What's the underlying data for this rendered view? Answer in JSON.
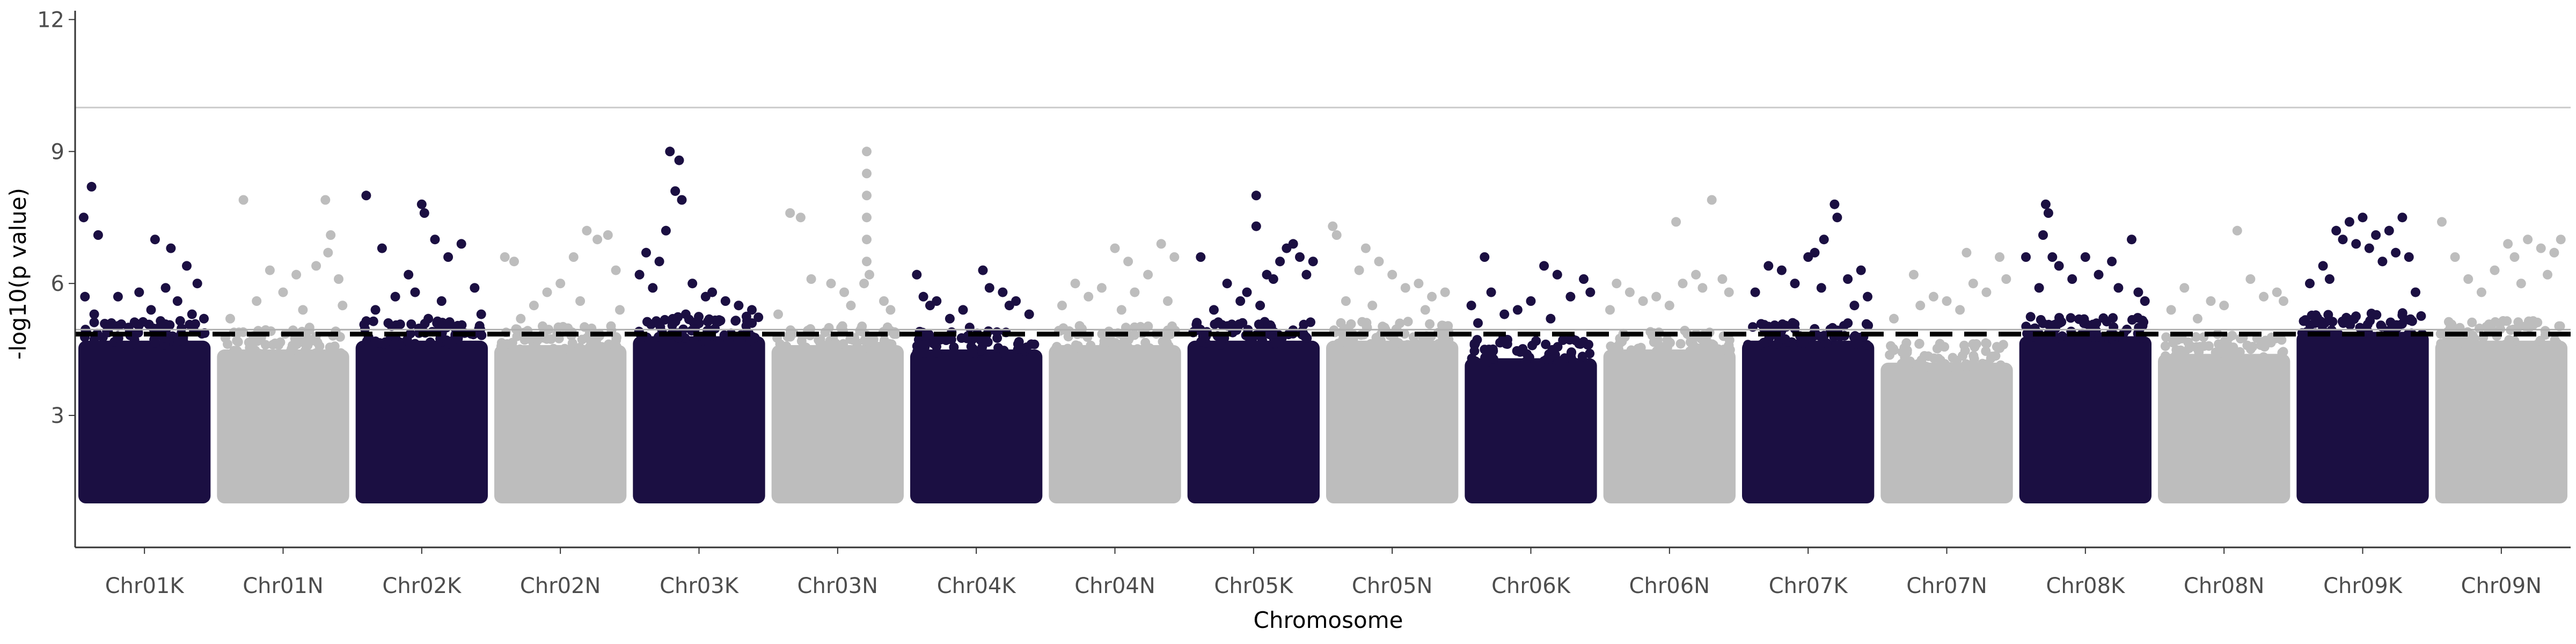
{
  "chart_data": {
    "type": "scatter",
    "subtype": "manhattan",
    "title": "",
    "xlabel": "Chromosome",
    "ylabel": "-log10(p value)",
    "ylim": [
      0,
      12.2
    ],
    "yticks": [
      3,
      6,
      9,
      12
    ],
    "grid": false,
    "legend": "none",
    "colors": {
      "dark": "#1b0f42",
      "light": "#bdbdbd"
    },
    "reference_lines": [
      {
        "y": 10.0,
        "style": "solid",
        "color": "#cccccc"
      },
      {
        "y": 4.95,
        "style": "solid",
        "color": "#b0b0b0"
      },
      {
        "y": 4.85,
        "style": "dashed",
        "color": "#000000"
      }
    ],
    "chromosomes": [
      {
        "name": "Chr01K",
        "color": "dark",
        "bulk_top": 4.7,
        "hits": [
          [
            0.1,
            8.2
          ],
          [
            0.04,
            7.5
          ],
          [
            0.15,
            7.1
          ],
          [
            0.58,
            7.0
          ],
          [
            0.7,
            6.8
          ],
          [
            0.82,
            6.4
          ],
          [
            0.9,
            6.0
          ],
          [
            0.3,
            5.7
          ],
          [
            0.46,
            5.8
          ],
          [
            0.66,
            5.9
          ],
          [
            0.05,
            5.7
          ],
          [
            0.75,
            5.6
          ],
          [
            0.12,
            5.3
          ],
          [
            0.25,
            5.1
          ],
          [
            0.55,
            5.4
          ],
          [
            0.86,
            5.3
          ],
          [
            0.95,
            5.2
          ],
          [
            0.38,
            5.0
          ]
        ]
      },
      {
        "name": "Chr01N",
        "color": "light",
        "bulk_top": 4.5,
        "hits": [
          [
            0.2,
            7.9
          ],
          [
            0.82,
            7.9
          ],
          [
            0.86,
            7.1
          ],
          [
            0.4,
            6.3
          ],
          [
            0.6,
            6.2
          ],
          [
            0.75,
            6.4
          ],
          [
            0.92,
            6.1
          ],
          [
            0.3,
            5.6
          ],
          [
            0.5,
            5.8
          ],
          [
            0.1,
            5.2
          ],
          [
            0.65,
            5.4
          ],
          [
            0.95,
            5.5
          ],
          [
            0.7,
            5.0
          ],
          [
            0.84,
            6.7
          ]
        ]
      },
      {
        "name": "Chr02K",
        "color": "dark",
        "bulk_top": 4.7,
        "hits": [
          [
            0.08,
            8.0
          ],
          [
            0.5,
            7.8
          ],
          [
            0.52,
            7.6
          ],
          [
            0.2,
            6.8
          ],
          [
            0.6,
            7.0
          ],
          [
            0.7,
            6.6
          ],
          [
            0.8,
            6.9
          ],
          [
            0.4,
            6.2
          ],
          [
            0.9,
            5.9
          ],
          [
            0.3,
            5.7
          ],
          [
            0.15,
            5.4
          ],
          [
            0.45,
            5.8
          ],
          [
            0.65,
            5.6
          ],
          [
            0.95,
            5.3
          ],
          [
            0.55,
            5.2
          ]
        ]
      },
      {
        "name": "Chr02N",
        "color": "light",
        "bulk_top": 4.6,
        "hits": [
          [
            0.08,
            6.6
          ],
          [
            0.15,
            6.5
          ],
          [
            0.7,
            7.2
          ],
          [
            0.78,
            7.0
          ],
          [
            0.86,
            7.1
          ],
          [
            0.6,
            6.6
          ],
          [
            0.5,
            6.0
          ],
          [
            0.92,
            6.3
          ],
          [
            0.3,
            5.5
          ],
          [
            0.4,
            5.8
          ],
          [
            0.2,
            5.2
          ],
          [
            0.65,
            5.6
          ],
          [
            0.95,
            5.4
          ]
        ]
      },
      {
        "name": "Chr03K",
        "color": "dark",
        "bulk_top": 4.8,
        "hits": [
          [
            0.28,
            9.0
          ],
          [
            0.35,
            8.8
          ],
          [
            0.32,
            8.1
          ],
          [
            0.37,
            7.9
          ],
          [
            0.1,
            6.7
          ],
          [
            0.25,
            7.2
          ],
          [
            0.2,
            6.5
          ],
          [
            0.05,
            6.2
          ],
          [
            0.45,
            6.0
          ],
          [
            0.55,
            5.7
          ],
          [
            0.6,
            5.8
          ],
          [
            0.7,
            5.6
          ],
          [
            0.8,
            5.5
          ],
          [
            0.9,
            5.4
          ],
          [
            0.15,
            5.9
          ],
          [
            0.4,
            5.3
          ]
        ]
      },
      {
        "name": "Chr03N",
        "color": "light",
        "bulk_top": 4.6,
        "hits": [
          [
            0.14,
            7.6
          ],
          [
            0.22,
            7.5
          ],
          [
            0.72,
            9.0
          ],
          [
            0.72,
            8.5
          ],
          [
            0.72,
            8.0
          ],
          [
            0.72,
            7.5
          ],
          [
            0.72,
            7.0
          ],
          [
            0.72,
            6.5
          ],
          [
            0.74,
            6.2
          ],
          [
            0.7,
            6.0
          ],
          [
            0.3,
            6.1
          ],
          [
            0.45,
            6.0
          ],
          [
            0.55,
            5.8
          ],
          [
            0.85,
            5.6
          ],
          [
            0.9,
            5.4
          ],
          [
            0.05,
            5.3
          ],
          [
            0.6,
            5.5
          ]
        ]
      },
      {
        "name": "Chr04K",
        "color": "dark",
        "bulk_top": 4.5,
        "hits": [
          [
            0.05,
            6.2
          ],
          [
            0.55,
            6.3
          ],
          [
            0.1,
            5.7
          ],
          [
            0.2,
            5.6
          ],
          [
            0.15,
            5.5
          ],
          [
            0.4,
            5.4
          ],
          [
            0.6,
            5.9
          ],
          [
            0.7,
            5.8
          ],
          [
            0.8,
            5.6
          ],
          [
            0.9,
            5.3
          ],
          [
            0.3,
            5.2
          ],
          [
            0.45,
            5.0
          ],
          [
            0.75,
            5.5
          ]
        ]
      },
      {
        "name": "Chr04N",
        "color": "light",
        "bulk_top": 4.6,
        "hits": [
          [
            0.2,
            6.0
          ],
          [
            0.5,
            6.8
          ],
          [
            0.6,
            6.5
          ],
          [
            0.75,
            6.2
          ],
          [
            0.85,
            6.9
          ],
          [
            0.95,
            6.6
          ],
          [
            0.4,
            5.9
          ],
          [
            0.1,
            5.5
          ],
          [
            0.3,
            5.7
          ],
          [
            0.55,
            5.4
          ],
          [
            0.65,
            5.8
          ],
          [
            0.9,
            5.6
          ]
        ]
      },
      {
        "name": "Chr05K",
        "color": "dark",
        "bulk_top": 4.7,
        "hits": [
          [
            0.52,
            8.0
          ],
          [
            0.52,
            7.3
          ],
          [
            0.3,
            6.0
          ],
          [
            0.1,
            6.6
          ],
          [
            0.7,
            6.5
          ],
          [
            0.75,
            6.8
          ],
          [
            0.8,
            6.9
          ],
          [
            0.85,
            6.6
          ],
          [
            0.9,
            6.2
          ],
          [
            0.95,
            6.5
          ],
          [
            0.6,
            6.2
          ],
          [
            0.65,
            6.1
          ],
          [
            0.4,
            5.6
          ],
          [
            0.2,
            5.4
          ],
          [
            0.45,
            5.8
          ],
          [
            0.55,
            5.5
          ]
        ]
      },
      {
        "name": "Chr05N",
        "color": "light",
        "bulk_top": 4.7,
        "hits": [
          [
            0.05,
            7.3
          ],
          [
            0.08,
            7.1
          ],
          [
            0.3,
            6.8
          ],
          [
            0.25,
            6.3
          ],
          [
            0.4,
            6.5
          ],
          [
            0.5,
            6.2
          ],
          [
            0.6,
            5.9
          ],
          [
            0.7,
            6.0
          ],
          [
            0.8,
            5.7
          ],
          [
            0.9,
            5.8
          ],
          [
            0.15,
            5.6
          ],
          [
            0.35,
            5.5
          ],
          [
            0.75,
            5.4
          ]
        ]
      },
      {
        "name": "Chr06K",
        "color": "dark",
        "bulk_top": 4.3,
        "hits": [
          [
            0.15,
            6.6
          ],
          [
            0.6,
            6.4
          ],
          [
            0.7,
            6.2
          ],
          [
            0.9,
            6.1
          ],
          [
            0.05,
            5.5
          ],
          [
            0.2,
            5.8
          ],
          [
            0.3,
            5.3
          ],
          [
            0.4,
            5.4
          ],
          [
            0.5,
            5.6
          ],
          [
            0.8,
            5.7
          ],
          [
            0.95,
            5.8
          ],
          [
            0.1,
            5.1
          ],
          [
            0.65,
            5.2
          ]
        ]
      },
      {
        "name": "Chr06N",
        "color": "light",
        "bulk_top": 4.5,
        "hits": [
          [
            0.55,
            7.4
          ],
          [
            0.82,
            7.9
          ],
          [
            0.1,
            6.0
          ],
          [
            0.2,
            5.8
          ],
          [
            0.3,
            5.6
          ],
          [
            0.4,
            5.7
          ],
          [
            0.6,
            6.0
          ],
          [
            0.7,
            6.2
          ],
          [
            0.9,
            6.1
          ],
          [
            0.95,
            5.8
          ],
          [
            0.5,
            5.5
          ],
          [
            0.05,
            5.4
          ],
          [
            0.75,
            5.9
          ]
        ]
      },
      {
        "name": "Chr07K",
        "color": "dark",
        "bulk_top": 4.7,
        "hits": [
          [
            0.7,
            7.8
          ],
          [
            0.72,
            7.5
          ],
          [
            0.62,
            7.0
          ],
          [
            0.55,
            6.7
          ],
          [
            0.5,
            6.6
          ],
          [
            0.2,
            6.4
          ],
          [
            0.3,
            6.3
          ],
          [
            0.4,
            6.0
          ],
          [
            0.8,
            6.1
          ],
          [
            0.9,
            6.3
          ],
          [
            0.1,
            5.8
          ],
          [
            0.6,
            5.9
          ],
          [
            0.95,
            5.7
          ],
          [
            0.85,
            5.5
          ]
        ]
      },
      {
        "name": "Chr07N",
        "color": "light",
        "bulk_top": 4.2,
        "hits": [
          [
            0.65,
            6.7
          ],
          [
            0.9,
            6.6
          ],
          [
            0.25,
            6.2
          ],
          [
            0.4,
            5.7
          ],
          [
            0.5,
            5.6
          ],
          [
            0.7,
            6.0
          ],
          [
            0.8,
            5.8
          ],
          [
            0.95,
            6.1
          ],
          [
            0.1,
            5.2
          ],
          [
            0.6,
            5.4
          ],
          [
            0.3,
            5.5
          ]
        ]
      },
      {
        "name": "Chr08K",
        "color": "dark",
        "bulk_top": 4.8,
        "hits": [
          [
            0.2,
            7.8
          ],
          [
            0.22,
            7.6
          ],
          [
            0.18,
            7.1
          ],
          [
            0.25,
            6.6
          ],
          [
            0.5,
            6.6
          ],
          [
            0.7,
            6.5
          ],
          [
            0.85,
            7.0
          ],
          [
            0.3,
            6.4
          ],
          [
            0.4,
            6.1
          ],
          [
            0.6,
            6.2
          ],
          [
            0.05,
            6.6
          ],
          [
            0.75,
            5.9
          ],
          [
            0.9,
            5.8
          ],
          [
            0.15,
            5.9
          ],
          [
            0.95,
            5.6
          ]
        ]
      },
      {
        "name": "Chr08N",
        "color": "light",
        "bulk_top": 4.4,
        "hits": [
          [
            0.6,
            7.2
          ],
          [
            0.2,
            5.9
          ],
          [
            0.4,
            5.6
          ],
          [
            0.7,
            6.1
          ],
          [
            0.8,
            5.7
          ],
          [
            0.9,
            5.8
          ],
          [
            0.1,
            5.4
          ],
          [
            0.3,
            5.2
          ],
          [
            0.5,
            5.5
          ],
          [
            0.95,
            5.6
          ]
        ]
      },
      {
        "name": "Chr09K",
        "color": "dark",
        "bulk_top": 4.9,
        "hits": [
          [
            0.3,
            7.2
          ],
          [
            0.4,
            7.4
          ],
          [
            0.5,
            7.5
          ],
          [
            0.6,
            7.1
          ],
          [
            0.7,
            7.2
          ],
          [
            0.8,
            7.5
          ],
          [
            0.35,
            7.0
          ],
          [
            0.45,
            6.9
          ],
          [
            0.55,
            6.8
          ],
          [
            0.65,
            6.5
          ],
          [
            0.75,
            6.7
          ],
          [
            0.2,
            6.4
          ],
          [
            0.85,
            6.6
          ],
          [
            0.1,
            6.0
          ],
          [
            0.9,
            5.8
          ],
          [
            0.25,
            6.1
          ]
        ]
      },
      {
        "name": "Chr09N",
        "color": "light",
        "bulk_top": 4.7,
        "hits": [
          [
            0.05,
            7.4
          ],
          [
            0.55,
            6.9
          ],
          [
            0.6,
            6.6
          ],
          [
            0.7,
            7.0
          ],
          [
            0.8,
            6.8
          ],
          [
            0.9,
            6.7
          ],
          [
            0.95,
            7.0
          ],
          [
            0.15,
            6.6
          ],
          [
            0.25,
            6.1
          ],
          [
            0.35,
            5.8
          ],
          [
            0.45,
            6.3
          ],
          [
            0.65,
            6.0
          ],
          [
            0.85,
            6.2
          ]
        ]
      }
    ]
  }
}
